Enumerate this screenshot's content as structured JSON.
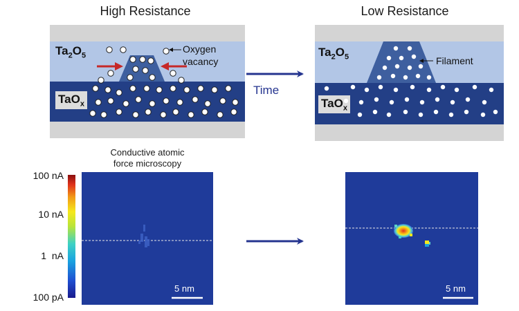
{
  "high": {
    "title": "High Resistance",
    "top_layer": "Ta",
    "top_layer_sub1": "2",
    "top_layer_mid": "O",
    "top_layer_sub2": "5",
    "bottom_layer": "TaO",
    "bottom_layer_sub": "x",
    "annotation_line1": "Oxygen",
    "annotation_line2": "vacancy"
  },
  "low": {
    "title": "Low Resistance",
    "top_layer": "Ta",
    "top_layer_sub1": "2",
    "top_layer_mid": "O",
    "top_layer_sub2": "5",
    "bottom_layer": "TaO",
    "bottom_layer_sub": "x",
    "annotation": "Filament"
  },
  "arrow_label": "Time",
  "afm": {
    "caption_line1": "Conductive atomic",
    "caption_line2": "force microscopy",
    "scale_left": "5 nm",
    "scale_right": "5 nm"
  },
  "colorbar": {
    "ticks": [
      "100 nA",
      "10 nA",
      "1  nA",
      "100 pA"
    ]
  },
  "colors": {
    "electrode": "#d4d4d4",
    "ta2o5": "#b2c6e6",
    "taox": "#233f86",
    "filament": "#3e5f9f",
    "arrow": "#24348f",
    "red_arrow": "#c62828",
    "afm_bg": "#1f3b9a"
  }
}
